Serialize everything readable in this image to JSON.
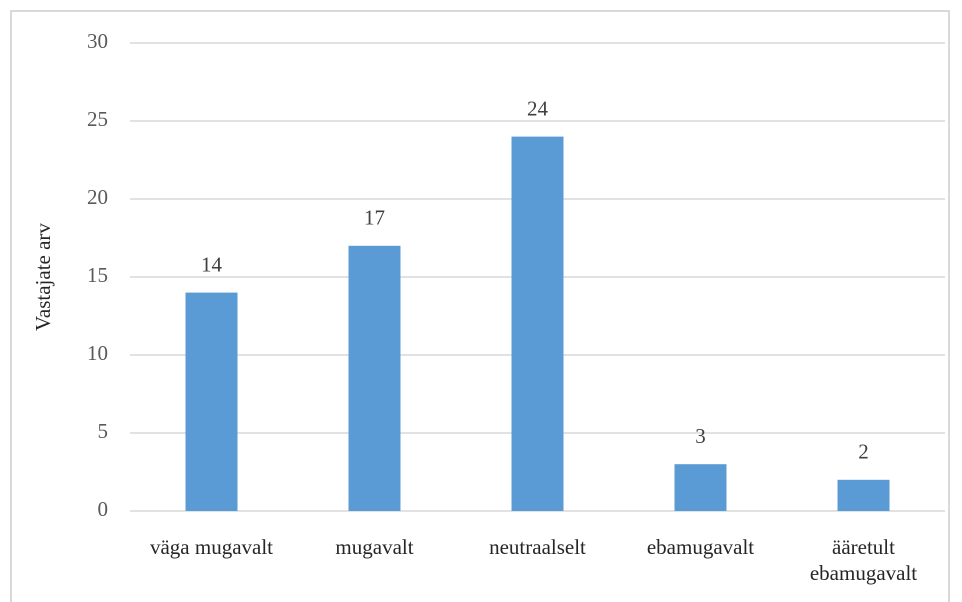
{
  "chart_data": {
    "type": "bar",
    "y_label": "Vastajate arv",
    "categories": [
      "väga mugavalt",
      "mugavalt",
      "neutraalselt",
      "ebamugavalt",
      "ääretult ebamugavalt"
    ],
    "values": [
      14,
      17,
      24,
      3,
      2
    ],
    "color": "#5b9bd5",
    "ylim": [
      0,
      30
    ],
    "yticks": [
      0,
      5,
      10,
      15,
      20,
      25,
      30
    ],
    "grid": true
  }
}
